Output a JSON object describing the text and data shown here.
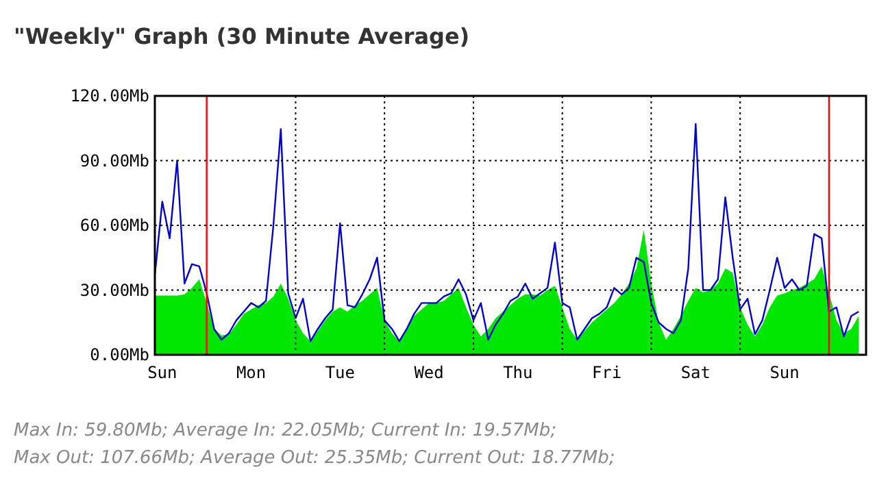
{
  "chart_data": {
    "type": "area",
    "title": "\"Weekly\" Graph (30 Minute Average)",
    "categories": [
      null,
      "Sun",
      null,
      null,
      null,
      null,
      null,
      null,
      null,
      null,
      null,
      null,
      null,
      "Mon",
      null,
      null,
      null,
      null,
      null,
      null,
      null,
      null,
      null,
      null,
      null,
      "Tue",
      null,
      null,
      null,
      null,
      null,
      null,
      null,
      null,
      null,
      null,
      null,
      "Wed",
      null,
      null,
      null,
      null,
      null,
      null,
      null,
      null,
      null,
      null,
      null,
      "Thu",
      null,
      null,
      null,
      null,
      null,
      null,
      null,
      null,
      null,
      null,
      null,
      "Fri",
      null,
      null,
      null,
      null,
      null,
      null,
      null,
      null,
      null,
      null,
      null,
      "Sat",
      null,
      null,
      null,
      null,
      null,
      null,
      null,
      null,
      null,
      null,
      null,
      "Sun",
      null,
      null,
      null,
      null,
      null,
      null,
      null,
      null,
      null,
      null
    ],
    "ylim": [
      0,
      120
    ],
    "yticks": [
      {
        "value": 0,
        "label": "0.00Mb"
      },
      {
        "value": 30,
        "label": "30.00Mb"
      },
      {
        "value": 60,
        "label": "60.00Mb"
      },
      {
        "value": 90,
        "label": "90.00Mb"
      },
      {
        "value": 120,
        "label": "120.00Mb"
      }
    ],
    "grid": true,
    "series": [
      {
        "color": "#00e600",
        "values": [
          27.5,
          27.5,
          27.5,
          27.5,
          28,
          31,
          35,
          24,
          12,
          9,
          9.5,
          14,
          19,
          21,
          23,
          24,
          27,
          33,
          26,
          16,
          10,
          6.3,
          11,
          16,
          20,
          22,
          20,
          23,
          25,
          28,
          31,
          16,
          10,
          6.3,
          12,
          18,
          21,
          24,
          24,
          25,
          28,
          31,
          22,
          14,
          8.5,
          12,
          17,
          20,
          23,
          26,
          28,
          28,
          27.5,
          30,
          32,
          22,
          12,
          7,
          11,
          15,
          18,
          21,
          24,
          28,
          33,
          40,
          58,
          33,
          15,
          7,
          12,
          18,
          25,
          31,
          29,
          30,
          33,
          40,
          38,
          22,
          14,
          8.5,
          14,
          22,
          27.5,
          28.5,
          30,
          31,
          33,
          35,
          41,
          28.5,
          16,
          10,
          12,
          18
        ]
      },
      {
        "type": "line",
        "color": "#0000cc",
        "values": [
          37,
          71,
          54,
          90,
          33,
          42,
          41,
          28.5,
          12,
          7,
          10,
          16,
          20,
          24,
          22,
          25,
          60,
          104.6,
          28.5,
          17,
          26,
          6.3,
          12,
          17,
          21,
          61,
          23,
          22,
          28,
          35,
          45,
          16,
          12,
          6.3,
          12,
          19,
          24,
          24,
          24,
          27,
          28.5,
          35,
          28,
          16,
          24,
          7,
          14,
          19,
          25,
          27,
          33,
          26,
          28.5,
          31,
          52,
          24,
          22,
          7,
          12,
          17,
          19,
          22,
          31,
          28,
          31,
          45,
          43,
          24,
          15,
          12,
          10,
          16,
          40,
          107,
          30,
          30,
          35,
          73,
          45,
          21,
          26,
          9.5,
          16,
          30,
          45,
          31,
          35,
          30,
          32,
          56,
          54,
          20,
          22,
          8.5,
          18,
          20
        ]
      }
    ],
    "annotations": [
      "Max In: 59.80Mb; Average In: 22.05Mb; Current In: 19.57Mb;",
      "Max Out: 107.66Mb; Average Out: 25.35Mb; Current Out: 18.77Mb;"
    ]
  }
}
